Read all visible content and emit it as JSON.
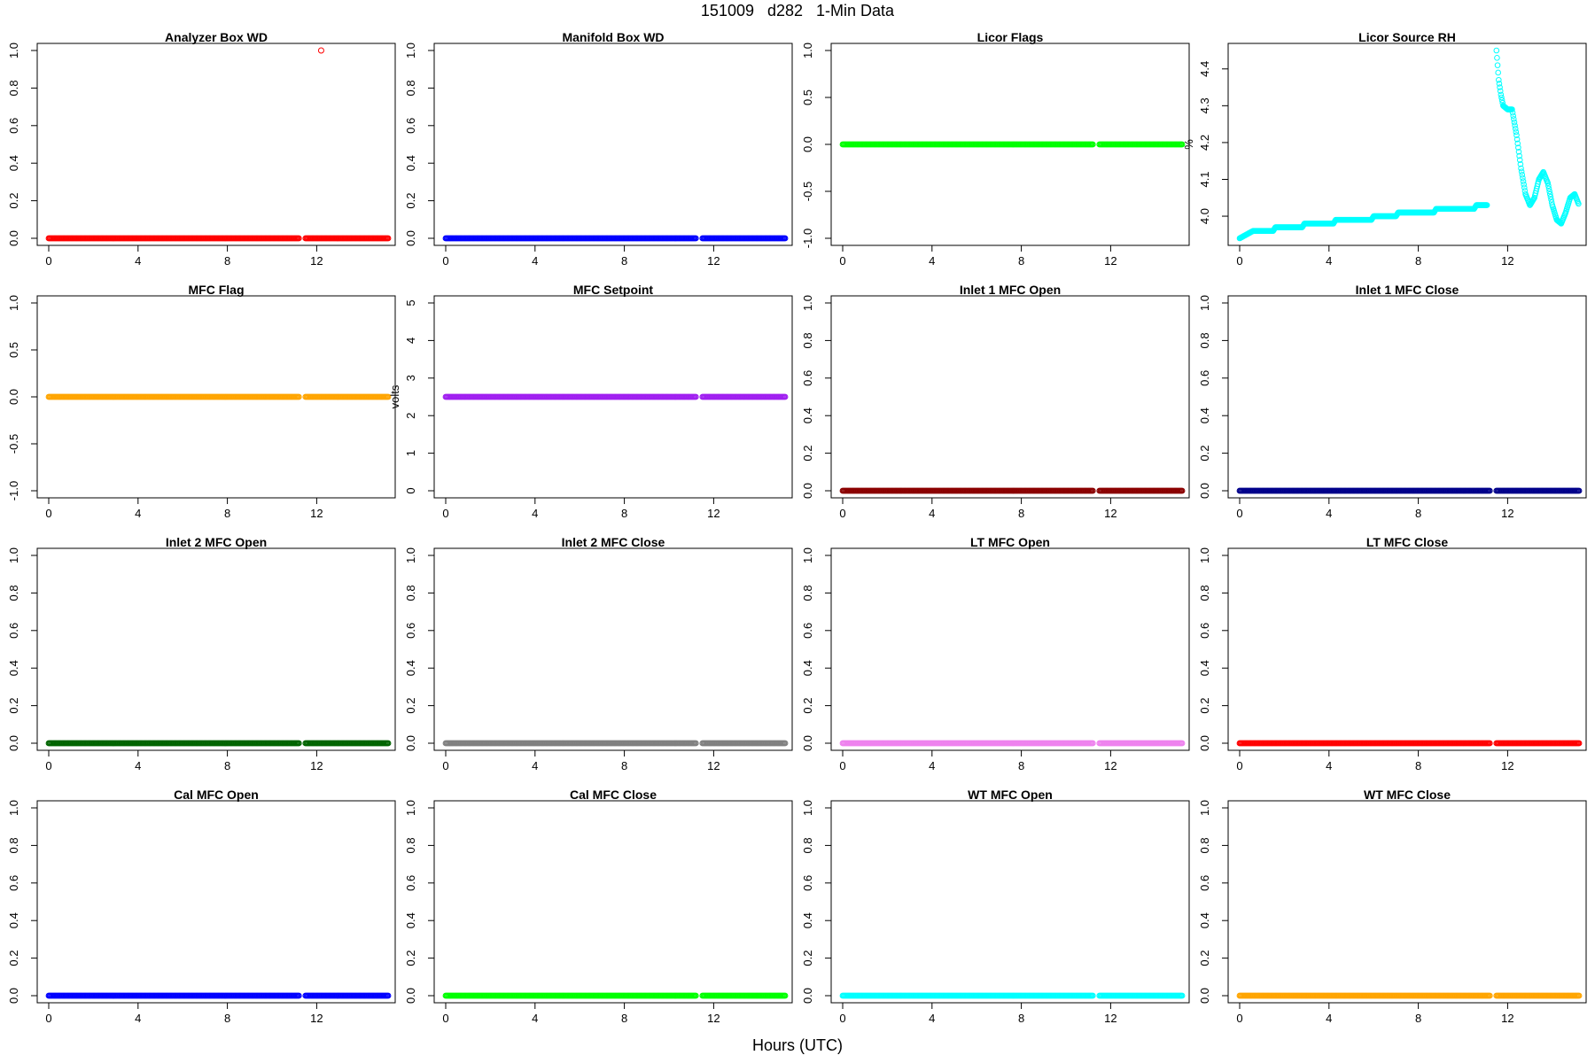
{
  "title": "151009   d282   1-Min Data",
  "xlabel": "Hours (UTC)",
  "chart_data": [
    {
      "type": "scatter",
      "title": "Analyzer Box WD",
      "ylabel": "",
      "color": "#ff0000",
      "xlim": [
        0,
        15
      ],
      "xticks": [
        0,
        4,
        8,
        12
      ],
      "ylim": [
        0,
        1
      ],
      "yticks": [
        "0.0",
        "0.2",
        "0.4",
        "0.6",
        "0.8",
        "1.0"
      ],
      "gap": [
        11.2,
        11.5
      ],
      "values": "constant 0",
      "outliers": [
        {
          "x": 12.2,
          "y": 1.0
        }
      ]
    },
    {
      "type": "scatter",
      "title": "Manifold Box WD",
      "ylabel": "",
      "color": "#0000ff",
      "xlim": [
        0,
        15
      ],
      "xticks": [
        0,
        4,
        8,
        12
      ],
      "ylim": [
        0,
        1
      ],
      "yticks": [
        "0.0",
        "0.2",
        "0.4",
        "0.6",
        "0.8",
        "1.0"
      ],
      "gap": [
        11.2,
        11.5
      ],
      "values": "constant 0"
    },
    {
      "type": "scatter",
      "title": "Licor Flags",
      "ylabel": "",
      "color": "#00ff00",
      "xlim": [
        0,
        15
      ],
      "xticks": [
        0,
        4,
        8,
        12
      ],
      "ylim": [
        -1,
        1
      ],
      "yticks": [
        "-1.0",
        "-0.5",
        "0.0",
        "0.5",
        "1.0"
      ],
      "gap": [
        11.2,
        11.5
      ],
      "values": "constant 0"
    },
    {
      "type": "scatter",
      "title": "Licor Source RH",
      "ylabel": "%",
      "color": "#00ffff",
      "xlim": [
        0,
        15
      ],
      "xticks": [
        0,
        4,
        8,
        12
      ],
      "ylim": [
        3.94,
        4.45
      ],
      "yticks": [
        "4.0",
        "4.1",
        "4.2",
        "4.3",
        "4.4"
      ],
      "gap": [
        11.2,
        11.5
      ],
      "points": [
        [
          0,
          3.94
        ],
        [
          0.3,
          3.95
        ],
        [
          0.6,
          3.96
        ],
        [
          1.5,
          3.96
        ],
        [
          1.6,
          3.97
        ],
        [
          2.8,
          3.97
        ],
        [
          2.9,
          3.98
        ],
        [
          4.2,
          3.98
        ],
        [
          4.3,
          3.99
        ],
        [
          5.9,
          3.99
        ],
        [
          6.0,
          4.0
        ],
        [
          7.0,
          4.0
        ],
        [
          7.1,
          4.01
        ],
        [
          8.7,
          4.01
        ],
        [
          8.8,
          4.02
        ],
        [
          10.5,
          4.02
        ],
        [
          10.6,
          4.03
        ],
        [
          11.1,
          4.03
        ],
        [
          11.5,
          4.45
        ],
        [
          11.6,
          4.37
        ],
        [
          11.7,
          4.33
        ],
        [
          11.8,
          4.3
        ],
        [
          12.0,
          4.29
        ],
        [
          12.2,
          4.29
        ],
        [
          12.4,
          4.22
        ],
        [
          12.6,
          4.13
        ],
        [
          12.8,
          4.06
        ],
        [
          13.0,
          4.03
        ],
        [
          13.2,
          4.05
        ],
        [
          13.4,
          4.1
        ],
        [
          13.6,
          4.12
        ],
        [
          13.8,
          4.09
        ],
        [
          14.0,
          4.03
        ],
        [
          14.2,
          3.99
        ],
        [
          14.4,
          3.98
        ],
        [
          14.6,
          4.01
        ],
        [
          14.8,
          4.05
        ],
        [
          15.0,
          4.06
        ],
        [
          15.2,
          4.03
        ]
      ]
    },
    {
      "type": "scatter",
      "title": "MFC Flag",
      "ylabel": "",
      "color": "#ffa500",
      "xlim": [
        0,
        15
      ],
      "xticks": [
        0,
        4,
        8,
        12
      ],
      "ylim": [
        -1,
        1
      ],
      "yticks": [
        "-1.0",
        "-0.5",
        "0.0",
        "0.5",
        "1.0"
      ],
      "gap": [
        11.2,
        11.5
      ],
      "values": "constant 0"
    },
    {
      "type": "scatter",
      "title": "MFC Setpoint",
      "ylabel": "volts",
      "color": "#a020f0",
      "xlim": [
        0,
        15
      ],
      "xticks": [
        0,
        4,
        8,
        12
      ],
      "ylim": [
        0,
        5
      ],
      "yticks": [
        "0",
        "1",
        "2",
        "3",
        "4",
        "5"
      ],
      "gap": [
        11.2,
        11.5
      ],
      "values": "constant 2.5"
    },
    {
      "type": "scatter",
      "title": "Inlet 1 MFC Open",
      "ylabel": "",
      "color": "#8b0000",
      "xlim": [
        0,
        15
      ],
      "xticks": [
        0,
        4,
        8,
        12
      ],
      "ylim": [
        0,
        1
      ],
      "yticks": [
        "0.0",
        "0.2",
        "0.4",
        "0.6",
        "0.8",
        "1.0"
      ],
      "gap": [
        11.2,
        11.5
      ],
      "values": "constant 0"
    },
    {
      "type": "scatter",
      "title": "Inlet 1 MFC Close",
      "ylabel": "",
      "color": "#00008b",
      "xlim": [
        0,
        15
      ],
      "xticks": [
        0,
        4,
        8,
        12
      ],
      "ylim": [
        0,
        1
      ],
      "yticks": [
        "0.0",
        "0.2",
        "0.4",
        "0.6",
        "0.8",
        "1.0"
      ],
      "gap": [
        11.2,
        11.5
      ],
      "values": "constant 0"
    },
    {
      "type": "scatter",
      "title": "Inlet 2 MFC Open",
      "ylabel": "",
      "color": "#006400",
      "xlim": [
        0,
        15
      ],
      "xticks": [
        0,
        4,
        8,
        12
      ],
      "ylim": [
        0,
        1
      ],
      "yticks": [
        "0.0",
        "0.2",
        "0.4",
        "0.6",
        "0.8",
        "1.0"
      ],
      "gap": [
        11.2,
        11.5
      ],
      "values": "constant 0"
    },
    {
      "type": "scatter",
      "title": "Inlet 2 MFC Close",
      "ylabel": "",
      "color": "#808080",
      "xlim": [
        0,
        15
      ],
      "xticks": [
        0,
        4,
        8,
        12
      ],
      "ylim": [
        0,
        1
      ],
      "yticks": [
        "0.0",
        "0.2",
        "0.4",
        "0.6",
        "0.8",
        "1.0"
      ],
      "gap": [
        11.2,
        11.5
      ],
      "values": "constant 0"
    },
    {
      "type": "scatter",
      "title": "LT MFC Open",
      "ylabel": "",
      "color": "#ee82ee",
      "xlim": [
        0,
        15
      ],
      "xticks": [
        0,
        4,
        8,
        12
      ],
      "ylim": [
        0,
        1
      ],
      "yticks": [
        "0.0",
        "0.2",
        "0.4",
        "0.6",
        "0.8",
        "1.0"
      ],
      "gap": [
        11.2,
        11.5
      ],
      "values": "constant 0"
    },
    {
      "type": "scatter",
      "title": "LT MFC Close",
      "ylabel": "",
      "color": "#ff0000",
      "xlim": [
        0,
        15
      ],
      "xticks": [
        0,
        4,
        8,
        12
      ],
      "ylim": [
        0,
        1
      ],
      "yticks": [
        "0.0",
        "0.2",
        "0.4",
        "0.6",
        "0.8",
        "1.0"
      ],
      "gap": [
        11.2,
        11.5
      ],
      "values": "constant 0"
    },
    {
      "type": "scatter",
      "title": "Cal MFC Open",
      "ylabel": "",
      "color": "#0000ff",
      "xlim": [
        0,
        15
      ],
      "xticks": [
        0,
        4,
        8,
        12
      ],
      "ylim": [
        0,
        1
      ],
      "yticks": [
        "0.0",
        "0.2",
        "0.4",
        "0.6",
        "0.8",
        "1.0"
      ],
      "gap": [
        11.2,
        11.5
      ],
      "values": "constant 0"
    },
    {
      "type": "scatter",
      "title": "Cal MFC Close",
      "ylabel": "",
      "color": "#00ff00",
      "xlim": [
        0,
        15
      ],
      "xticks": [
        0,
        4,
        8,
        12
      ],
      "ylim": [
        0,
        1
      ],
      "yticks": [
        "0.0",
        "0.2",
        "0.4",
        "0.6",
        "0.8",
        "1.0"
      ],
      "gap": [
        11.2,
        11.5
      ],
      "values": "constant 0"
    },
    {
      "type": "scatter",
      "title": "WT MFC Open",
      "ylabel": "",
      "color": "#00ffff",
      "xlim": [
        0,
        15
      ],
      "xticks": [
        0,
        4,
        8,
        12
      ],
      "ylim": [
        0,
        1
      ],
      "yticks": [
        "0.0",
        "0.2",
        "0.4",
        "0.6",
        "0.8",
        "1.0"
      ],
      "gap": [
        11.2,
        11.5
      ],
      "values": "constant 0"
    },
    {
      "type": "scatter",
      "title": "WT MFC Close",
      "ylabel": "",
      "color": "#ffa500",
      "xlim": [
        0,
        15
      ],
      "xticks": [
        0,
        4,
        8,
        12
      ],
      "ylim": [
        0,
        1
      ],
      "yticks": [
        "0.0",
        "0.2",
        "0.4",
        "0.6",
        "0.8",
        "1.0"
      ],
      "gap": [
        11.2,
        11.5
      ],
      "values": "constant 0"
    }
  ]
}
